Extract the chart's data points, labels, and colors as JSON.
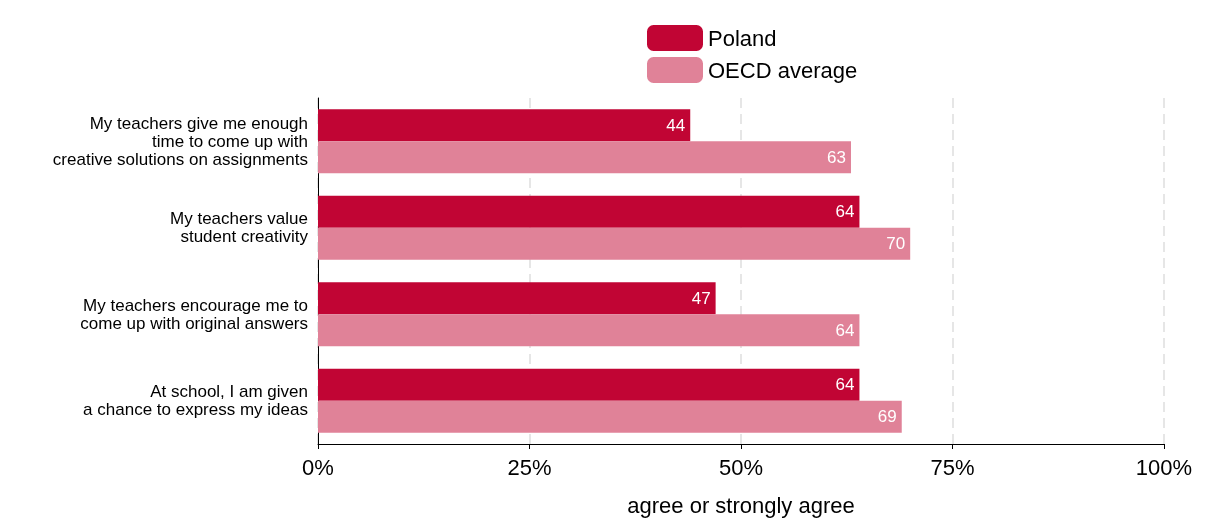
{
  "chart_data": {
    "type": "bar",
    "orientation": "horizontal",
    "xlabel": "agree or strongly agree",
    "categories": [
      "My teachers give me enough\ntime to come up with\ncreative solutions on assignments",
      "My teachers value\nstudent creativity",
      "My teachers encourage me to\ncome up with original answers",
      "At school, I am given\na chance to express my ideas"
    ],
    "series": [
      {
        "name": "Poland",
        "color": "#c10534",
        "values": [
          44,
          64,
          47,
          64
        ]
      },
      {
        "name": "OECD average",
        "color": "#e08298",
        "values": [
          63,
          70,
          64,
          69
        ]
      }
    ],
    "xlim": [
      0,
      100
    ],
    "xticks": [
      {
        "value": 0,
        "label": "0%"
      },
      {
        "value": 25,
        "label": "25%"
      },
      {
        "value": 50,
        "label": "50%"
      },
      {
        "value": 75,
        "label": "75%"
      },
      {
        "value": 100,
        "label": "100%"
      }
    ],
    "grid": "x",
    "legend": "top",
    "data_labels": true
  }
}
